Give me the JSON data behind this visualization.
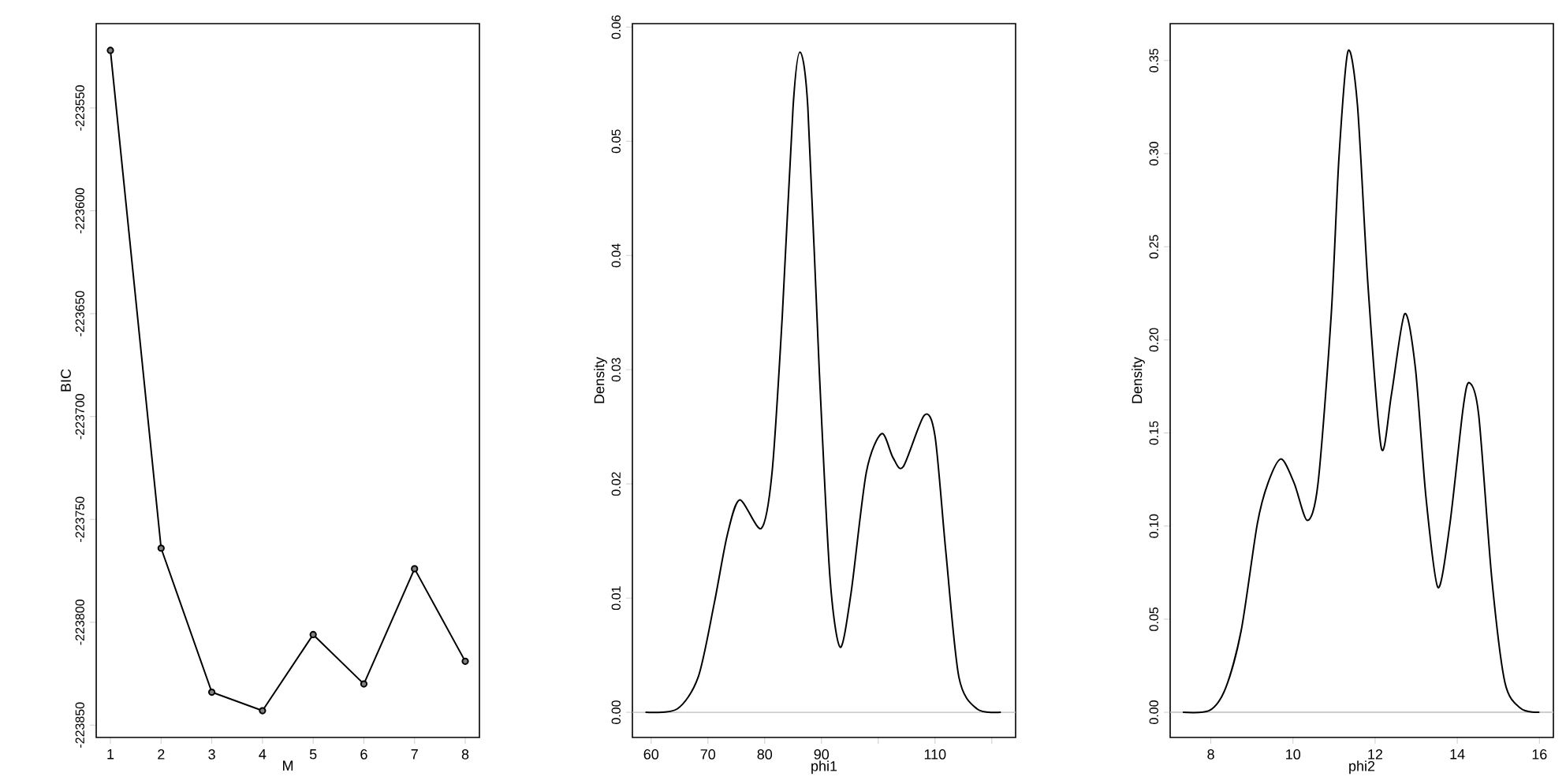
{
  "chart_data": [
    {
      "type": "line",
      "xlabel": "M",
      "ylabel": "BIC",
      "x": [
        1,
        2,
        3,
        4,
        5,
        6,
        7,
        8
      ],
      "values": [
        -223522,
        -223764,
        -223834,
        -223843,
        -223806,
        -223830,
        -223774,
        -223819
      ],
      "color": "#000000",
      "marker": "circle",
      "xlim": [
        0.72,
        8.28
      ],
      "ylim": [
        -223856,
        -223509
      ],
      "xticks": [
        1,
        2,
        3,
        4,
        5,
        6,
        7,
        8
      ],
      "yticks": [
        -223850,
        -223800,
        -223750,
        -223700,
        -223650,
        -223600,
        -223550
      ]
    },
    {
      "type": "line",
      "xlabel": "phi1",
      "ylabel": "Density",
      "x": [
        59,
        64.6,
        68.3,
        71.1,
        73.4,
        75.6,
        79.4,
        81.3,
        83.1,
        85,
        86.2,
        87.6,
        89.6,
        91.5,
        93.3,
        95.2,
        97.9,
        100.6,
        102.6,
        104.4,
        108.1,
        110,
        111.9,
        114.2,
        117.4,
        121.6
      ],
      "values": [
        0,
        0.0003,
        0.0031,
        0.0095,
        0.0155,
        0.0186,
        0.0161,
        0.021,
        0.0347,
        0.053,
        0.0578,
        0.053,
        0.0301,
        0.0118,
        0.0057,
        0.0104,
        0.021,
        0.0244,
        0.0223,
        0.0215,
        0.026,
        0.0242,
        0.0141,
        0.0031,
        0.0003,
        0
      ],
      "color": "#000000",
      "marker": "none",
      "xlim": [
        56.7,
        124.2
      ],
      "ylim": [
        -0.0022,
        0.0603
      ],
      "xticks": [
        60,
        70,
        80,
        90,
        {
          "value": 100,
          "label": null
        },
        110,
        {
          "value": 120,
          "label": null
        }
      ],
      "yticks": [
        {
          "value": 0,
          "label": "0.00"
        },
        0.01,
        0.02,
        0.03,
        0.04,
        0.05,
        0.06
      ],
      "ref_lines": [
        {
          "axis": "y",
          "value": 0,
          "color": "#bebebe"
        }
      ]
    },
    {
      "type": "line",
      "xlabel": "phi2",
      "ylabel": "Density",
      "x": [
        7.32,
        7.97,
        8.36,
        8.74,
        9.13,
        9.39,
        9.71,
        10.03,
        10.35,
        10.61,
        10.93,
        11.12,
        11.34,
        11.57,
        11.83,
        12.15,
        12.4,
        12.72,
        12.98,
        13.24,
        13.53,
        13.82,
        14.14,
        14.29,
        14.52,
        14.84,
        15.16,
        15.55,
        16
      ],
      "values": [
        0,
        0.001,
        0.013,
        0.044,
        0.101,
        0.123,
        0.136,
        0.123,
        0.103,
        0.123,
        0.213,
        0.298,
        0.355,
        0.326,
        0.228,
        0.142,
        0.171,
        0.214,
        0.185,
        0.115,
        0.067,
        0.101,
        0.163,
        0.177,
        0.16,
        0.072,
        0.016,
        0.002,
        0
      ],
      "color": "#000000",
      "marker": "none",
      "xlim": [
        7.01,
        16.34
      ],
      "ylim": [
        -0.0135,
        0.3698
      ],
      "xticks": [
        8,
        10,
        12,
        14,
        16
      ],
      "yticks": [
        {
          "value": 0,
          "label": "0.00"
        },
        0.05,
        {
          "value": 0.1,
          "label": "0.10"
        },
        0.15,
        {
          "value": 0.2,
          "label": "0.20"
        },
        0.25,
        {
          "value": 0.3,
          "label": "0.30"
        },
        0.35
      ],
      "ref_lines": [
        {
          "axis": "y",
          "value": 0,
          "color": "#bebebe"
        }
      ]
    }
  ]
}
